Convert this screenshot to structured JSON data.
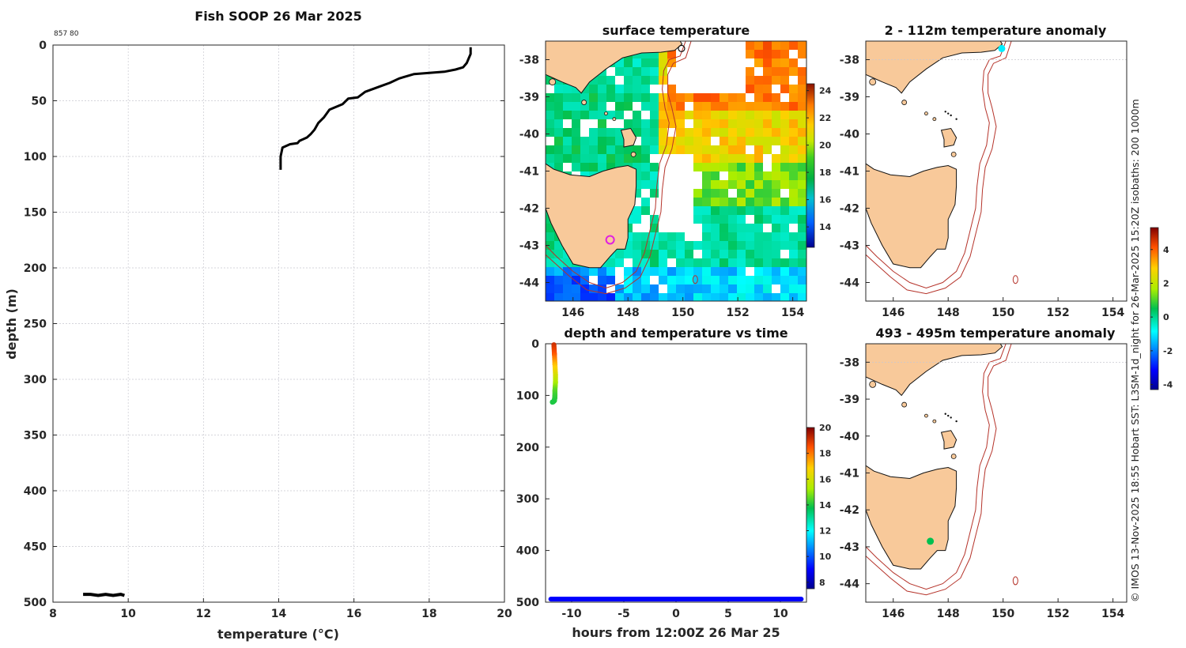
{
  "colors": {
    "land": "#f8c99a",
    "isobath": "#b5332a",
    "profile": "#000000"
  },
  "chart_data": [
    {
      "type": "line",
      "id": "profile",
      "title": "Fish SOOP 26 Mar 2025",
      "annotation": "857 80",
      "xlabel": "temperature (°C)",
      "ylabel": "depth (m)",
      "xlim": [
        8,
        20
      ],
      "ylim": [
        500,
        0
      ],
      "xticks": [
        "8",
        "10",
        "12",
        "14",
        "16",
        "18",
        "20"
      ],
      "yticks": [
        "0",
        "50",
        "100",
        "150",
        "200",
        "250",
        "300",
        "350",
        "400",
        "450",
        "500"
      ],
      "series": [
        {
          "name": "upper profile",
          "x": [
            19.1,
            19.1,
            19.05,
            19.0,
            18.9,
            18.7,
            18.4,
            18.0,
            17.6,
            17.2,
            16.95,
            16.7,
            16.3,
            16.1,
            15.85,
            15.7,
            15.35,
            15.2,
            15.05,
            14.95,
            14.85,
            14.75,
            14.55,
            14.5,
            14.3,
            14.1,
            14.05,
            14.05
          ],
          "y": [
            2,
            8,
            12,
            16,
            20,
            22,
            24,
            25,
            26,
            30,
            34,
            37,
            42,
            47,
            48,
            53,
            58,
            65,
            70,
            76,
            80,
            83,
            86,
            88,
            89,
            92,
            100,
            112
          ]
        },
        {
          "name": "bottom segment",
          "x": [
            8.8,
            9.0,
            9.2,
            9.4,
            9.6,
            9.8,
            9.9
          ],
          "y": [
            493,
            493,
            494,
            493,
            494,
            493,
            494
          ]
        }
      ]
    },
    {
      "type": "heatmap",
      "id": "sst_map",
      "title": "surface temperature",
      "xlim": [
        145,
        154.5
      ],
      "ylim": [
        -44.5,
        -37.5
      ],
      "xticks": [
        "146",
        "148",
        "150",
        "152",
        "154"
      ],
      "yticks": [
        "-38",
        "-39",
        "-40",
        "-41",
        "-42",
        "-43",
        "-44"
      ],
      "colorbar": {
        "min": 12.5,
        "max": 24.5,
        "ticks": [
          "14",
          "16",
          "18",
          "20",
          "22",
          "24"
        ]
      }
    },
    {
      "type": "scatter",
      "id": "depth_time",
      "title": "depth and temperature vs time",
      "xlabel": "hours from 12:00Z 26 Mar 25",
      "xlim": [
        -12.5,
        12.5
      ],
      "ylim": [
        500,
        0
      ],
      "xticks": [
        "-10",
        "-5",
        "0",
        "5",
        "10"
      ],
      "yticks": [
        "0",
        "100",
        "200",
        "300",
        "400",
        "500"
      ],
      "colorbar": {
        "min": 7.5,
        "max": 20,
        "ticks": [
          "8",
          "10",
          "12",
          "14",
          "16",
          "18",
          "20"
        ]
      },
      "series": [
        {
          "name": "descent",
          "x": [
            -11.7,
            -11.65,
            -11.6,
            -11.55,
            -11.55,
            -11.6,
            -11.6,
            -11.62,
            -11.65,
            -11.75,
            -11.85
          ],
          "y": [
            2,
            20,
            40,
            60,
            75,
            90,
            100,
            105,
            110,
            112,
            113
          ],
          "temperature": [
            19.1,
            18.5,
            17.2,
            16.2,
            15.4,
            14.6,
            14.3,
            14.2,
            14.1,
            14.05,
            14.0
          ]
        },
        {
          "name": "bottom",
          "x_start": -12,
          "x_end": 12,
          "y": 494,
          "temperature": 9.0
        }
      ]
    },
    {
      "type": "scatter",
      "id": "anom_shallow",
      "title": "2 - 112m temperature anomaly",
      "xlim": [
        145,
        154.5
      ],
      "ylim": [
        -44.5,
        -37.5
      ],
      "xticks": [
        "146",
        "148",
        "150",
        "152",
        "154"
      ],
      "yticks": [
        "-38",
        "-39",
        "-40",
        "-41",
        "-42",
        "-43",
        "-44"
      ],
      "points": [
        {
          "lon": 149.95,
          "lat": -37.7,
          "anomaly": -1.0
        }
      ]
    },
    {
      "type": "scatter",
      "id": "anom_deep",
      "title": "493 - 495m temperature anomaly",
      "xlim": [
        145,
        154.5
      ],
      "ylim": [
        -44.5,
        -37.5
      ],
      "xticks": [
        "146",
        "148",
        "150",
        "152",
        "154"
      ],
      "yticks": [
        "-38",
        "-39",
        "-40",
        "-41",
        "-42",
        "-43",
        "-44"
      ],
      "points": [
        {
          "lon": 147.35,
          "lat": -42.85,
          "anomaly": 0.5
        }
      ],
      "colorbar": {
        "min": -4.3,
        "max": 5.3,
        "ticks": [
          "4",
          "2",
          "0",
          "-2",
          "-4"
        ]
      }
    }
  ],
  "side_caption": "© IMOS 13-Nov-2025 18:55 Hobart SST: L3SM-1d_night for 26-Mar-2025 15:20Z isobaths: 200  1000m"
}
